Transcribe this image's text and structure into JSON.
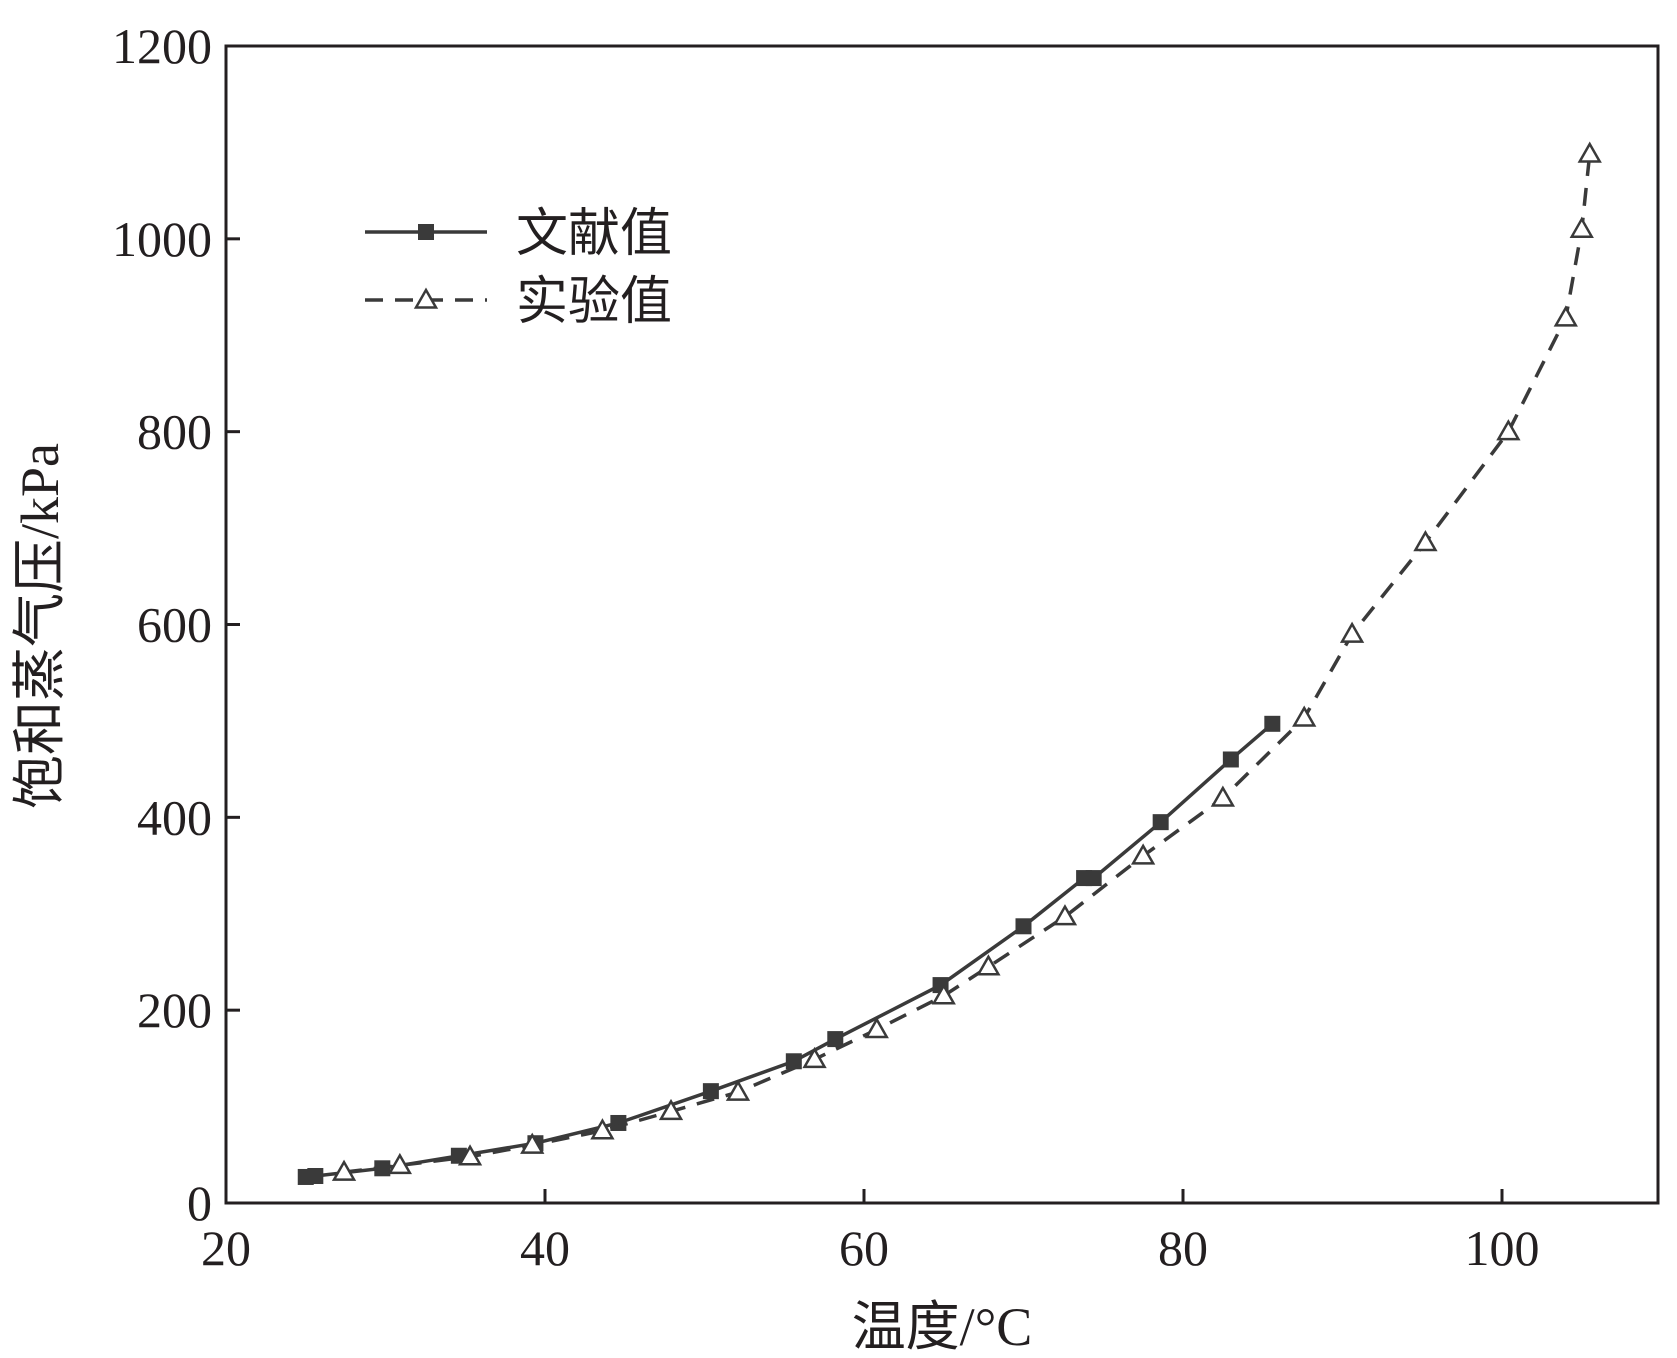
{
  "chart_data": {
    "type": "line",
    "title": "",
    "xlabel": "温度/°C",
    "ylabel": "饱和蒸气压/kPa",
    "xlim": [
      20,
      110
    ],
    "ylim": [
      0,
      1200
    ],
    "x_ticks": [
      "20",
      "40",
      "60",
      "80",
      "100"
    ],
    "y_ticks": [
      "0",
      "200",
      "400",
      "600",
      "800",
      "1000",
      "1200"
    ],
    "grid": false,
    "legend_position": "top-left",
    "series": [
      {
        "name": "文献值",
        "style": "solid",
        "marker": "filled-square",
        "color": "#3a3a3a",
        "points": [
          [
            25.0,
            27
          ],
          [
            25.6,
            28
          ],
          [
            29.8,
            36
          ],
          [
            34.6,
            49
          ],
          [
            39.4,
            62
          ],
          [
            44.6,
            83
          ],
          [
            50.4,
            116
          ],
          [
            55.6,
            147
          ],
          [
            58.2,
            170
          ],
          [
            64.8,
            226
          ],
          [
            70.0,
            287
          ],
          [
            73.8,
            337
          ],
          [
            74.4,
            337
          ],
          [
            78.6,
            395
          ],
          [
            83.0,
            460
          ],
          [
            85.6,
            497
          ]
        ]
      },
      {
        "name": "实验值",
        "style": "dashed",
        "marker": "open-triangle",
        "color": "#3a3a3a",
        "points": [
          [
            27.4,
            32
          ],
          [
            30.9,
            39
          ],
          [
            35.3,
            48
          ],
          [
            39.2,
            60
          ],
          [
            43.6,
            75
          ],
          [
            47.9,
            95
          ],
          [
            52.1,
            115
          ],
          [
            56.9,
            149
          ],
          [
            60.8,
            180
          ],
          [
            65.0,
            215
          ],
          [
            67.8,
            245
          ],
          [
            72.6,
            297
          ],
          [
            77.5,
            360
          ],
          [
            82.5,
            420
          ],
          [
            87.6,
            503
          ],
          [
            90.6,
            590
          ],
          [
            95.2,
            685
          ],
          [
            100.4,
            800
          ],
          [
            104.0,
            918
          ],
          [
            105.0,
            1010
          ],
          [
            105.5,
            1088
          ]
        ]
      }
    ]
  }
}
